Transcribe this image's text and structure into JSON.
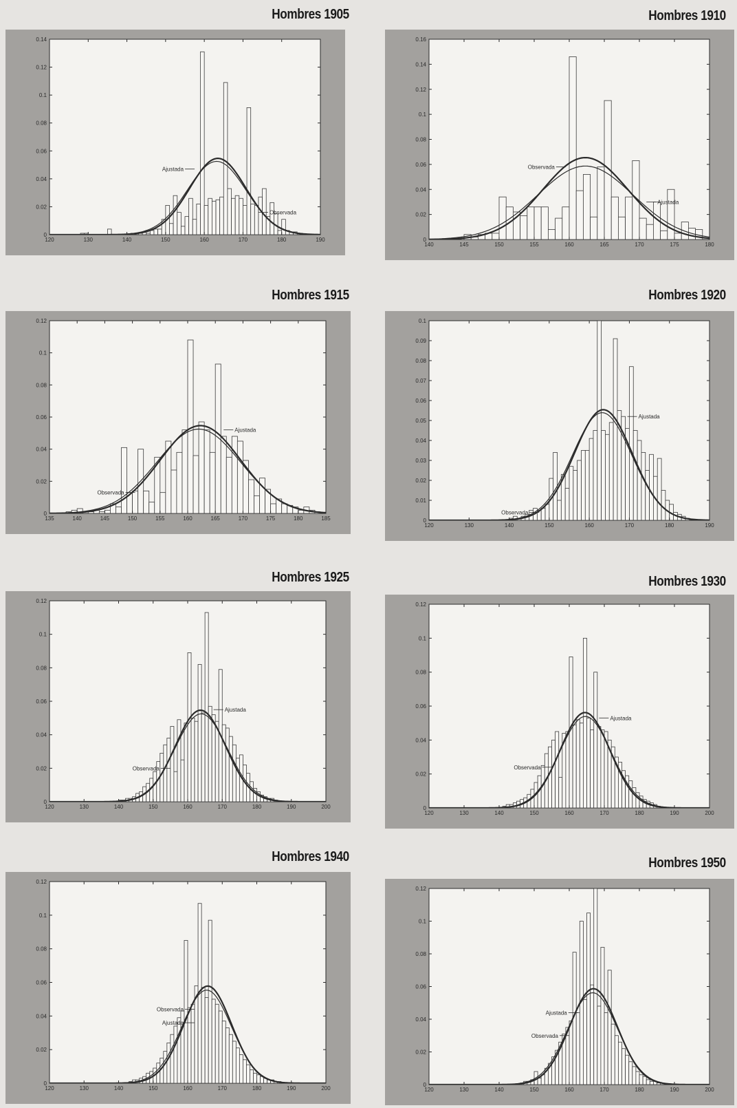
{
  "chart_data": [
    {
      "title": "Hombres 1905",
      "type": "bar",
      "xlim": [
        120,
        190
      ],
      "ylim": [
        0,
        0.14
      ],
      "xticks": [
        120,
        130,
        140,
        150,
        160,
        170,
        180,
        190
      ],
      "yticks": [
        0,
        0.02,
        0.04,
        0.06,
        0.08,
        0.1,
        0.12,
        0.14
      ],
      "ytick_labels": [
        "0",
        "0.02",
        "0.04",
        "0.06",
        "0.08",
        "0.1",
        "0.12",
        "0.14"
      ],
      "histogram": {
        "start": 128,
        "width": 1,
        "values": [
          0.001,
          0.001,
          0,
          0,
          0,
          0,
          0,
          0.004,
          0,
          0,
          0,
          0,
          0,
          0.001,
          0,
          0.001,
          0.002,
          0.001,
          0.003,
          0.004,
          0.004,
          0.011,
          0.021,
          0.008,
          0.028,
          0.016,
          0.006,
          0.013,
          0.026,
          0.011,
          0.022,
          0.131,
          0.021,
          0.026,
          0.024,
          0.025,
          0.027,
          0.109,
          0.033,
          0.026,
          0.028,
          0.026,
          0.021,
          0.091,
          0.022,
          0.021,
          0.027,
          0.033,
          0.013,
          0.023,
          0.015,
          0.003,
          0.011,
          0.003,
          0.002,
          0.002
        ]
      },
      "fitted": {
        "name": "Ajustada",
        "mean": 163.5,
        "sd": 7.3
      },
      "observed": {
        "name": "Observada",
        "mean": 163.2,
        "sd": 7.6
      },
      "annotations": [
        {
          "text": "Ajustada",
          "at": [
            157.5,
            0.047
          ],
          "side": "left"
        },
        {
          "text": "Observada",
          "at": [
            174.0,
            0.016
          ],
          "side": "right"
        }
      ]
    },
    {
      "title": "Hombres 1910",
      "type": "bar",
      "xlim": [
        140,
        180
      ],
      "ylim": [
        0,
        0.16
      ],
      "xticks": [
        140,
        145,
        150,
        155,
        160,
        165,
        170,
        175,
        180
      ],
      "yticks": [
        0,
        0.02,
        0.04,
        0.06,
        0.08,
        0.1,
        0.12,
        0.14,
        0.16
      ],
      "ytick_labels": [
        "0",
        "0.02",
        "0.04",
        "0.06",
        "0.08",
        "0.1",
        "0.12",
        "0.14",
        "0.16"
      ],
      "histogram": {
        "start": 145,
        "width": 1,
        "values": [
          0.004,
          0.002,
          0.004,
          0.005,
          0.005,
          0.034,
          0.026,
          0.022,
          0.019,
          0.026,
          0.026,
          0.026,
          0.008,
          0.017,
          0.026,
          0.146,
          0.039,
          0.052,
          0.018,
          0.058,
          0.111,
          0.034,
          0.018,
          0.034,
          0.063,
          0.017,
          0.012,
          0.03,
          0.007,
          0.04,
          0.005,
          0.014,
          0.009,
          0.008
        ]
      },
      "fitted": {
        "name": "Ajustada",
        "mean": 162.3,
        "sd": 6.1
      },
      "observed": {
        "name": "Observada",
        "mean": 162.3,
        "sd": 6.8
      },
      "annotations": [
        {
          "text": "Observada",
          "at": [
            159.5,
            0.058
          ],
          "side": "left"
        },
        {
          "text": "Ajustada",
          "at": [
            171.0,
            0.03
          ],
          "side": "right"
        }
      ]
    },
    {
      "title": "Hombres 1915",
      "type": "bar",
      "xlim": [
        135,
        185
      ],
      "ylim": [
        0,
        0.12
      ],
      "xticks": [
        135,
        140,
        145,
        150,
        155,
        160,
        165,
        170,
        175,
        180,
        185
      ],
      "yticks": [
        0,
        0.02,
        0.04,
        0.06,
        0.08,
        0.1,
        0.12
      ],
      "ytick_labels": [
        "0",
        "0.02",
        "0.04",
        "0.06",
        "0.08",
        "0.1",
        "0.12"
      ],
      "histogram": {
        "start": 138,
        "width": 1,
        "values": [
          0.001,
          0.002,
          0.003,
          0,
          0.001,
          0.002,
          0.001,
          0.002,
          0.006,
          0.004,
          0.041,
          0.013,
          0.014,
          0.04,
          0.014,
          0.007,
          0.035,
          0.013,
          0.045,
          0.027,
          0.038,
          0.052,
          0.108,
          0.036,
          0.057,
          0.052,
          0.038,
          0.093,
          0.048,
          0.035,
          0.048,
          0.045,
          0.033,
          0.021,
          0.011,
          0.022,
          0.015,
          0.006,
          0.009,
          0.006,
          0.005,
          0.004,
          0.002,
          0.004,
          0.002,
          0.001
        ]
      },
      "fitted": {
        "name": "Ajustada",
        "mean": 162.3,
        "sd": 7.3
      },
      "observed": {
        "name": "Observada",
        "mean": 162.0,
        "sd": 7.6
      },
      "annotations": [
        {
          "text": "Ajustada",
          "at": [
            166.5,
            0.052
          ],
          "side": "right"
        },
        {
          "text": "Observada",
          "at": [
            150.5,
            0.013
          ],
          "side": "left"
        }
      ]
    },
    {
      "title": "Hombres 1920",
      "type": "bar",
      "xlim": [
        120,
        190
      ],
      "ylim": [
        0,
        0.1
      ],
      "xticks": [
        120,
        130,
        140,
        150,
        160,
        170,
        180,
        190
      ],
      "yticks": [
        0,
        0.01,
        0.02,
        0.03,
        0.04,
        0.05,
        0.06,
        0.07,
        0.08,
        0.09,
        0.1
      ],
      "ytick_labels": [
        "0",
        "0.01",
        "0.02",
        "0.03",
        "0.04",
        "0.05",
        "0.06",
        "0.07",
        "0.08",
        "0.09",
        "0.1"
      ],
      "histogram": {
        "start": 140,
        "width": 1,
        "values": [
          0.001,
          0.002,
          0.001,
          0.002,
          0.003,
          0.005,
          0.006,
          0.005,
          0.006,
          0.008,
          0.021,
          0.034,
          0.01,
          0.023,
          0.016,
          0.027,
          0.025,
          0.03,
          0.035,
          0.035,
          0.041,
          0.045,
          0.1,
          0.045,
          0.043,
          0.049,
          0.091,
          0.055,
          0.052,
          0.046,
          0.077,
          0.045,
          0.04,
          0.034,
          0.025,
          0.033,
          0.022,
          0.031,
          0.015,
          0.01,
          0.008,
          0.004,
          0.003,
          0.002,
          0.001
        ]
      },
      "fitted": {
        "name": "Ajustada",
        "mean": 163.5,
        "sd": 7.2
      },
      "observed": {
        "name": "Observada",
        "mean": 163.2,
        "sd": 7.4
      },
      "annotations": [
        {
          "text": "Ajustada",
          "at": [
            169.5,
            0.052
          ],
          "side": "right"
        },
        {
          "text": "Observada",
          "at": [
            147.5,
            0.004
          ],
          "side": "left"
        }
      ]
    },
    {
      "title": "Hombres 1925",
      "type": "bar",
      "xlim": [
        120,
        200
      ],
      "ylim": [
        0,
        0.12
      ],
      "xticks": [
        120,
        130,
        140,
        150,
        160,
        170,
        180,
        190,
        200
      ],
      "yticks": [
        0,
        0.02,
        0.04,
        0.06,
        0.08,
        0.1,
        0.12
      ],
      "ytick_labels": [
        "0",
        "0.02",
        "0.04",
        "0.06",
        "0.08",
        "0.1",
        "0.12"
      ],
      "histogram": {
        "start": 140,
        "width": 1,
        "values": [
          0.001,
          0.001,
          0.002,
          0.002,
          0.003,
          0.005,
          0.006,
          0.009,
          0.011,
          0.014,
          0.018,
          0.024,
          0.029,
          0.034,
          0.038,
          0.045,
          0.018,
          0.049,
          0.025,
          0.047,
          0.089,
          0.05,
          0.048,
          0.082,
          0.053,
          0.113,
          0.057,
          0.052,
          0.048,
          0.079,
          0.046,
          0.044,
          0.039,
          0.034,
          0.026,
          0.028,
          0.022,
          0.017,
          0.012,
          0.008,
          0.006,
          0.004,
          0.003,
          0.002,
          0.002,
          0.001
        ]
      },
      "fitted": {
        "name": "Ajustada",
        "mean": 163.7,
        "sd": 7.3
      },
      "observed": {
        "name": "Observada",
        "mean": 163.9,
        "sd": 7.6
      },
      "annotations": [
        {
          "text": "Ajustada",
          "at": [
            167.5,
            0.055
          ],
          "side": "right"
        },
        {
          "text": "Observada",
          "at": [
            155.0,
            0.02
          ],
          "side": "left"
        }
      ]
    },
    {
      "title": "Hombres 1930",
      "type": "bar",
      "xlim": [
        120,
        200
      ],
      "ylim": [
        0,
        0.12
      ],
      "xticks": [
        120,
        130,
        140,
        150,
        160,
        170,
        180,
        190,
        200
      ],
      "yticks": [
        0,
        0.02,
        0.04,
        0.06,
        0.08,
        0.1,
        0.12
      ],
      "ytick_labels": [
        "0",
        "0.02",
        "0.04",
        "0.06",
        "0.08",
        "0.1",
        "0.12"
      ],
      "histogram": {
        "start": 141,
        "width": 1,
        "values": [
          0.001,
          0.002,
          0.002,
          0.003,
          0.004,
          0.005,
          0.006,
          0.008,
          0.011,
          0.015,
          0.019,
          0.025,
          0.032,
          0.036,
          0.04,
          0.045,
          0.018,
          0.044,
          0.045,
          0.089,
          0.049,
          0.052,
          0.05,
          0.1,
          0.053,
          0.046,
          0.08,
          0.048,
          0.046,
          0.045,
          0.04,
          0.036,
          0.03,
          0.027,
          0.022,
          0.019,
          0.016,
          0.012,
          0.009,
          0.007,
          0.005,
          0.004,
          0.003,
          0.002,
          0.001
        ]
      },
      "fitted": {
        "name": "Ajustada",
        "mean": 164.5,
        "sd": 7.1
      },
      "observed": {
        "name": "Observada",
        "mean": 164.6,
        "sd": 7.4
      },
      "annotations": [
        {
          "text": "Ajustada",
          "at": [
            168.5,
            0.053
          ],
          "side": "right"
        },
        {
          "text": "Observada",
          "at": [
            155.0,
            0.024
          ],
          "side": "left"
        }
      ]
    },
    {
      "title": "Hombres 1940",
      "type": "bar",
      "xlim": [
        120,
        200
      ],
      "ylim": [
        0,
        0.12
      ],
      "xticks": [
        120,
        130,
        140,
        150,
        160,
        170,
        180,
        190,
        200
      ],
      "yticks": [
        0,
        0.02,
        0.04,
        0.06,
        0.08,
        0.1,
        0.12
      ],
      "ytick_labels": [
        "0",
        "0.02",
        "0.04",
        "0.06",
        "0.08",
        "0.1",
        "0.12"
      ],
      "histogram": {
        "start": 143,
        "width": 1,
        "values": [
          0.001,
          0.002,
          0.002,
          0.003,
          0.004,
          0.006,
          0.007,
          0.009,
          0.012,
          0.015,
          0.019,
          0.024,
          0.029,
          0.034,
          0.039,
          0.043,
          0.085,
          0.045,
          0.047,
          0.058,
          0.107,
          0.057,
          0.051,
          0.097,
          0.05,
          0.047,
          0.043,
          0.037,
          0.033,
          0.029,
          0.025,
          0.021,
          0.017,
          0.014,
          0.011,
          0.008,
          0.006,
          0.005,
          0.004,
          0.003,
          0.002,
          0.002,
          0.001,
          0.001
        ]
      },
      "fitted": {
        "name": "Ajustada",
        "mean": 165.8,
        "sd": 6.9
      },
      "observed": {
        "name": "Observada",
        "mean": 165.5,
        "sd": 7.2
      },
      "annotations": [
        {
          "text": "Observada",
          "at": [
            162.0,
            0.044
          ],
          "side": "left"
        },
        {
          "text": "Ajustada",
          "at": [
            162.0,
            0.036
          ],
          "side": "left"
        }
      ]
    },
    {
      "title": "Hombres 1950",
      "type": "bar",
      "xlim": [
        120,
        200
      ],
      "ylim": [
        0,
        0.12
      ],
      "xticks": [
        120,
        130,
        140,
        150,
        160,
        170,
        180,
        190,
        200
      ],
      "yticks": [
        0,
        0.02,
        0.04,
        0.06,
        0.08,
        0.1,
        0.12
      ],
      "ytick_labels": [
        "0",
        "0.02",
        "0.04",
        "0.06",
        "0.08",
        "0.1",
        "0.12"
      ],
      "histogram": {
        "start": 146,
        "width": 1,
        "values": [
          0.001,
          0.002,
          0.002,
          0.003,
          0.008,
          0.004,
          0.006,
          0.01,
          0.013,
          0.017,
          0.021,
          0.026,
          0.031,
          0.035,
          0.039,
          0.081,
          0.044,
          0.1,
          0.052,
          0.105,
          0.061,
          0.12,
          0.048,
          0.084,
          0.044,
          0.07,
          0.037,
          0.03,
          0.026,
          0.022,
          0.018,
          0.014,
          0.011,
          0.008,
          0.006,
          0.005,
          0.003,
          0.002,
          0.002,
          0.001
        ]
      },
      "fitted": {
        "name": "Ajustada",
        "mean": 166.9,
        "sd": 6.8
      },
      "observed": {
        "name": "Observada",
        "mean": 166.7,
        "sd": 7.1
      },
      "annotations": [
        {
          "text": "Ajustada",
          "at": [
            162.5,
            0.044
          ],
          "side": "left"
        },
        {
          "text": "Observada",
          "at": [
            160.0,
            0.03
          ],
          "side": "left"
        }
      ]
    }
  ]
}
